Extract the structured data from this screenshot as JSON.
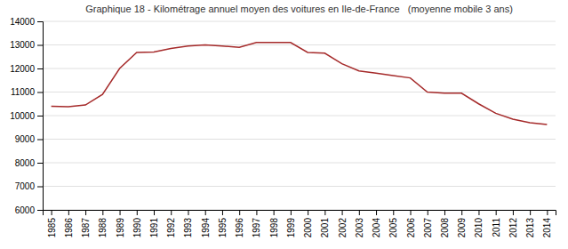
{
  "chart_data": {
    "type": "line",
    "title": "Graphique 18 - Kilométrage annuel moyen des voitures en Ile-de-France   (moyenne mobile 3 ans)",
    "x": [
      1985,
      1986,
      1987,
      1988,
      1989,
      1990,
      1991,
      1992,
      1993,
      1994,
      1995,
      1996,
      1997,
      1998,
      1999,
      2000,
      2001,
      2002,
      2003,
      2004,
      2005,
      2006,
      2007,
      2008,
      2009,
      2010,
      2011,
      2012,
      2013,
      2014
    ],
    "values": [
      10400,
      10380,
      10450,
      10900,
      12000,
      12680,
      12700,
      12850,
      12950,
      13000,
      12950,
      12900,
      13100,
      13100,
      13100,
      12680,
      12650,
      12200,
      11900,
      11800,
      11700,
      11600,
      11000,
      10950,
      10950,
      10500,
      10100,
      9850,
      9700,
      9620
    ],
    "color": "#a52a2a",
    "xlim": [
      1984.5,
      2014.5
    ],
    "xticks": [
      1985,
      1986,
      1987,
      1988,
      1989,
      1990,
      1991,
      1992,
      1993,
      1994,
      1995,
      1996,
      1997,
      1998,
      1999,
      2000,
      2001,
      2002,
      2003,
      2004,
      2005,
      2006,
      2007,
      2008,
      2009,
      2010,
      2011,
      2012,
      2013,
      2014
    ],
    "ylim": [
      6000,
      14000
    ],
    "yticks": [
      6000,
      7000,
      8000,
      9000,
      10000,
      11000,
      12000,
      13000,
      14000
    ],
    "grid": true
  }
}
